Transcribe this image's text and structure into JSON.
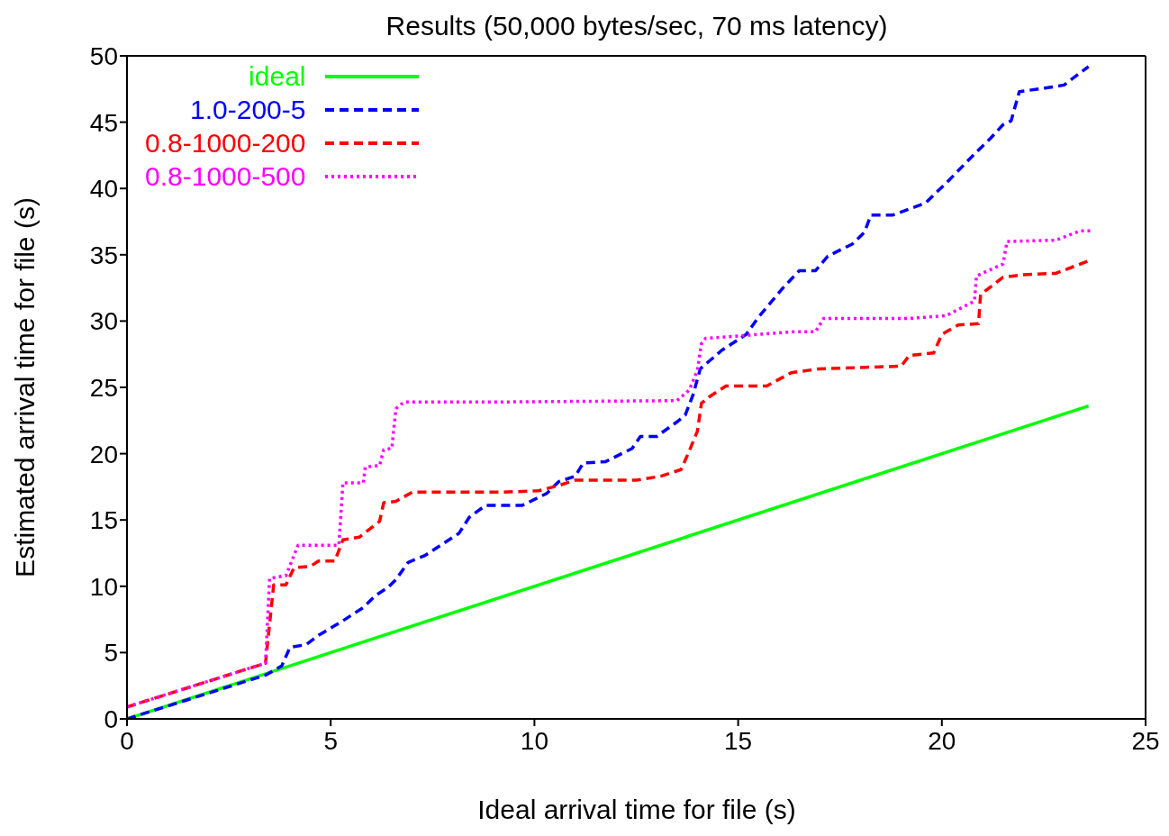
{
  "chart_data": {
    "type": "line",
    "title": "Results (50,000 bytes/sec, 70 ms latency)",
    "xlabel": "Ideal arrival time for file (s)",
    "ylabel": "Estimated arrival time for file (s)",
    "xlim": [
      0,
      25
    ],
    "xticks": [
      0,
      5,
      10,
      15,
      20,
      25
    ],
    "ylim": [
      0,
      50
    ],
    "yticks": [
      0,
      5,
      10,
      15,
      20,
      25,
      30,
      35,
      40,
      45,
      50
    ],
    "grid": false,
    "legend": "top left",
    "marker": "none",
    "series": [
      {
        "name": "ideal",
        "color": "#00ff00",
        "line_style": "solid",
        "x": [
          0,
          23.6
        ],
        "values": [
          0,
          23.6
        ]
      },
      {
        "name": "1.0-200-5",
        "color": "#0000ff",
        "line_style": "dashed",
        "x": [
          0,
          3.4,
          3.8,
          4.0,
          4.4,
          4.7,
          5.3,
          5.8,
          6.1,
          6.4,
          6.6,
          6.9,
          7.3,
          8.15,
          8.4,
          8.8,
          9.7,
          10.3,
          10.6,
          11.0,
          11.2,
          11.75,
          12.4,
          12.6,
          13.0,
          13.5,
          13.7,
          13.9,
          14.07,
          14.6,
          15.2,
          15.5,
          16.1,
          16.5,
          16.9,
          17.2,
          17.8,
          18.1,
          18.26,
          18.8,
          19.6,
          20.2,
          20.8,
          21.2,
          21.5,
          21.7,
          21.9,
          22.6,
          23.0,
          23.6
        ],
        "values": [
          0,
          3.3,
          4.0,
          5.4,
          5.6,
          6.3,
          7.4,
          8.4,
          9.3,
          9.9,
          10.5,
          11.8,
          12.3,
          14.0,
          15.2,
          16.1,
          16.1,
          17.0,
          17.9,
          18.3,
          19.3,
          19.4,
          20.4,
          21.3,
          21.3,
          22.4,
          22.9,
          24.5,
          26.4,
          27.8,
          29.0,
          30.3,
          32.5,
          33.8,
          33.8,
          34.9,
          35.8,
          36.7,
          38.0,
          38.0,
          38.9,
          40.7,
          42.6,
          43.8,
          44.8,
          45.1,
          47.3,
          47.6,
          47.8,
          49.2
        ]
      },
      {
        "name": "0.8-1000-200",
        "color": "#ff0000",
        "line_style": "dashed",
        "x": [
          0,
          3.4,
          3.6,
          3.9,
          4.1,
          4.5,
          4.7,
          5.1,
          5.3,
          5.7,
          6.2,
          6.3,
          6.6,
          7.0,
          9.2,
          10.1,
          10.6,
          11.0,
          12.5,
          13.1,
          13.6,
          13.8,
          14.0,
          14.1,
          14.3,
          14.7,
          15.7,
          16.3,
          17.0,
          18.0,
          19.0,
          19.2,
          19.8,
          20.0,
          20.4,
          20.9,
          20.95,
          21.5,
          22.0,
          22.8,
          23.65
        ],
        "values": [
          0.9,
          4.2,
          10.1,
          10.1,
          11.4,
          11.5,
          11.9,
          11.9,
          13.5,
          13.7,
          14.9,
          16.3,
          16.4,
          17.1,
          17.1,
          17.2,
          17.6,
          18.0,
          18.0,
          18.3,
          18.8,
          20.2,
          21.7,
          23.8,
          24.3,
          25.1,
          25.1,
          26.1,
          26.4,
          26.5,
          26.6,
          27.4,
          27.6,
          29.0,
          29.7,
          29.8,
          32.0,
          33.3,
          33.5,
          33.6,
          34.6
        ]
      },
      {
        "name": "0.8-1000-500",
        "color": "#ff00ff",
        "line_style": "dotted",
        "x": [
          0,
          3.4,
          3.5,
          3.9,
          4.2,
          5.2,
          5.3,
          5.8,
          5.85,
          6.2,
          6.3,
          6.5,
          6.6,
          6.8,
          9.2,
          13.5,
          13.8,
          14.0,
          14.1,
          14.2,
          15.1,
          16.4,
          16.9,
          17.1,
          19.2,
          20.1,
          20.8,
          20.85,
          21.5,
          21.6,
          22.8,
          23.4,
          23.65
        ],
        "values": [
          0.9,
          4.2,
          10.6,
          10.8,
          13.1,
          13.1,
          17.8,
          17.8,
          19.0,
          19.1,
          20.3,
          20.4,
          23.4,
          23.9,
          23.9,
          24.0,
          24.8,
          26.3,
          28.3,
          28.7,
          28.9,
          29.2,
          29.2,
          30.2,
          30.2,
          30.4,
          31.5,
          33.4,
          34.3,
          36.0,
          36.1,
          36.8,
          36.8
        ]
      }
    ]
  }
}
